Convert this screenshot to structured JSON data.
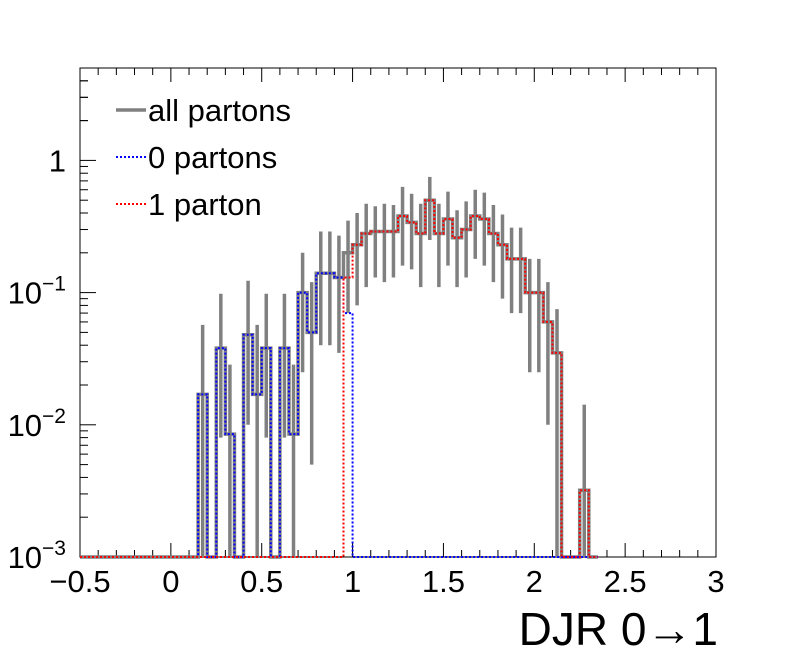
{
  "chart_data": {
    "type": "histogram",
    "xlabel": "DJR 0→1",
    "ylabel": "",
    "xlim": [
      -0.5,
      3.0
    ],
    "ylim": [
      0.001,
      5.0
    ],
    "yscale": "log",
    "bin_edges_start": -0.5,
    "bin_width": 0.05,
    "xticks": [
      -0.5,
      0,
      0.5,
      1,
      1.5,
      2,
      2.5,
      3
    ],
    "xtick_labels": [
      "−0.5",
      "0",
      "0.5",
      "1",
      "1.5",
      "2",
      "2.5",
      "3"
    ],
    "yticks": [
      {
        "value": 0.001,
        "base": "10",
        "exp": "−3"
      },
      {
        "value": 0.01,
        "base": "10",
        "exp": "−2"
      },
      {
        "value": 0.1,
        "base": "10",
        "exp": "−1"
      },
      {
        "value": 1,
        "base": "1",
        "exp": ""
      }
    ],
    "legend_position": "top-left",
    "series": [
      {
        "name": "all partons",
        "color": "#808080",
        "style": "solid",
        "values": [
          0.001,
          0.001,
          0.001,
          0.001,
          0.001,
          0.001,
          0.001,
          0.001,
          0.001,
          0.001,
          0.001,
          0.001,
          0.001,
          0.017,
          0.001,
          0.038,
          0.0085,
          0.001,
          0.048,
          0.017,
          0.038,
          0.001,
          0.038,
          0.0085,
          0.1,
          0.05,
          0.14,
          0.14,
          0.13,
          0.2,
          0.23,
          0.28,
          0.29,
          0.29,
          0.29,
          0.38,
          0.34,
          0.28,
          0.5,
          0.28,
          0.36,
          0.26,
          0.3,
          0.38,
          0.36,
          0.28,
          0.23,
          0.18,
          0.18,
          0.1,
          0.1,
          0.06,
          0.035,
          0.001,
          0.001,
          0.0032,
          0.001
        ],
        "err_low": [
          0,
          0,
          0,
          0,
          0,
          0,
          0,
          0,
          0,
          0,
          0,
          0,
          0,
          0.016,
          0,
          0.03,
          0.0075,
          0,
          0.038,
          0.016,
          0.03,
          0,
          0.03,
          0.0075,
          0.075,
          0.045,
          0.1,
          0.1,
          0.095,
          0.13,
          0.15,
          0.17,
          0.16,
          0.17,
          0.16,
          0.22,
          0.19,
          0.17,
          0.25,
          0.17,
          0.2,
          0.15,
          0.17,
          0.2,
          0.2,
          0.16,
          0.14,
          0.11,
          0.11,
          0.075,
          0.075,
          0.05,
          0.034,
          0,
          0,
          0.0031,
          0
        ],
        "err_high": [
          0,
          0,
          0,
          0,
          0,
          0,
          0,
          0,
          0,
          0,
          0,
          0,
          0,
          0.04,
          0,
          0.06,
          0.02,
          0,
          0.075,
          0.04,
          0.06,
          0,
          0.06,
          0.02,
          0.1,
          0.07,
          0.15,
          0.15,
          0.14,
          0.15,
          0.17,
          0.19,
          0.16,
          0.18,
          0.17,
          0.25,
          0.22,
          0.19,
          0.25,
          0.19,
          0.22,
          0.16,
          0.19,
          0.22,
          0.21,
          0.18,
          0.16,
          0.13,
          0.13,
          0.08,
          0.08,
          0.06,
          0.04,
          0,
          0,
          0.011,
          0
        ]
      },
      {
        "name": "0 partons",
        "color": "#0000ff",
        "style": "dotted",
        "values": [
          0.001,
          0.001,
          0.001,
          0.001,
          0.001,
          0.001,
          0.001,
          0.001,
          0.001,
          0.001,
          0.001,
          0.001,
          0.001,
          0.017,
          0.001,
          0.038,
          0.0085,
          0.001,
          0.048,
          0.017,
          0.038,
          0.001,
          0.038,
          0.0085,
          0.1,
          0.05,
          0.14,
          0.14,
          0.13,
          0.07,
          0.001,
          0.001,
          0.001,
          0.001,
          0.001,
          0.001,
          0.001,
          0.001,
          0.001,
          0.001,
          0.001,
          0.001,
          0.001,
          0.001,
          0.001,
          0.001,
          0.001,
          0.001,
          0.001,
          0.001,
          0.001,
          0.001,
          0.001,
          0.001,
          0.001,
          0.001,
          0.001
        ]
      },
      {
        "name": "1 parton",
        "color": "#ff0000",
        "style": "dotted",
        "values": [
          0.001,
          0.001,
          0.001,
          0.001,
          0.001,
          0.001,
          0.001,
          0.001,
          0.001,
          0.001,
          0.001,
          0.001,
          0.001,
          0.001,
          0.001,
          0.001,
          0.001,
          0.001,
          0.001,
          0.001,
          0.001,
          0.001,
          0.001,
          0.001,
          0.001,
          0.001,
          0.001,
          0.001,
          0.001,
          0.13,
          0.23,
          0.28,
          0.29,
          0.29,
          0.29,
          0.38,
          0.34,
          0.28,
          0.5,
          0.28,
          0.36,
          0.26,
          0.3,
          0.38,
          0.36,
          0.28,
          0.23,
          0.18,
          0.18,
          0.1,
          0.1,
          0.06,
          0.035,
          0.001,
          0.001,
          0.0032,
          0.001
        ]
      }
    ]
  }
}
